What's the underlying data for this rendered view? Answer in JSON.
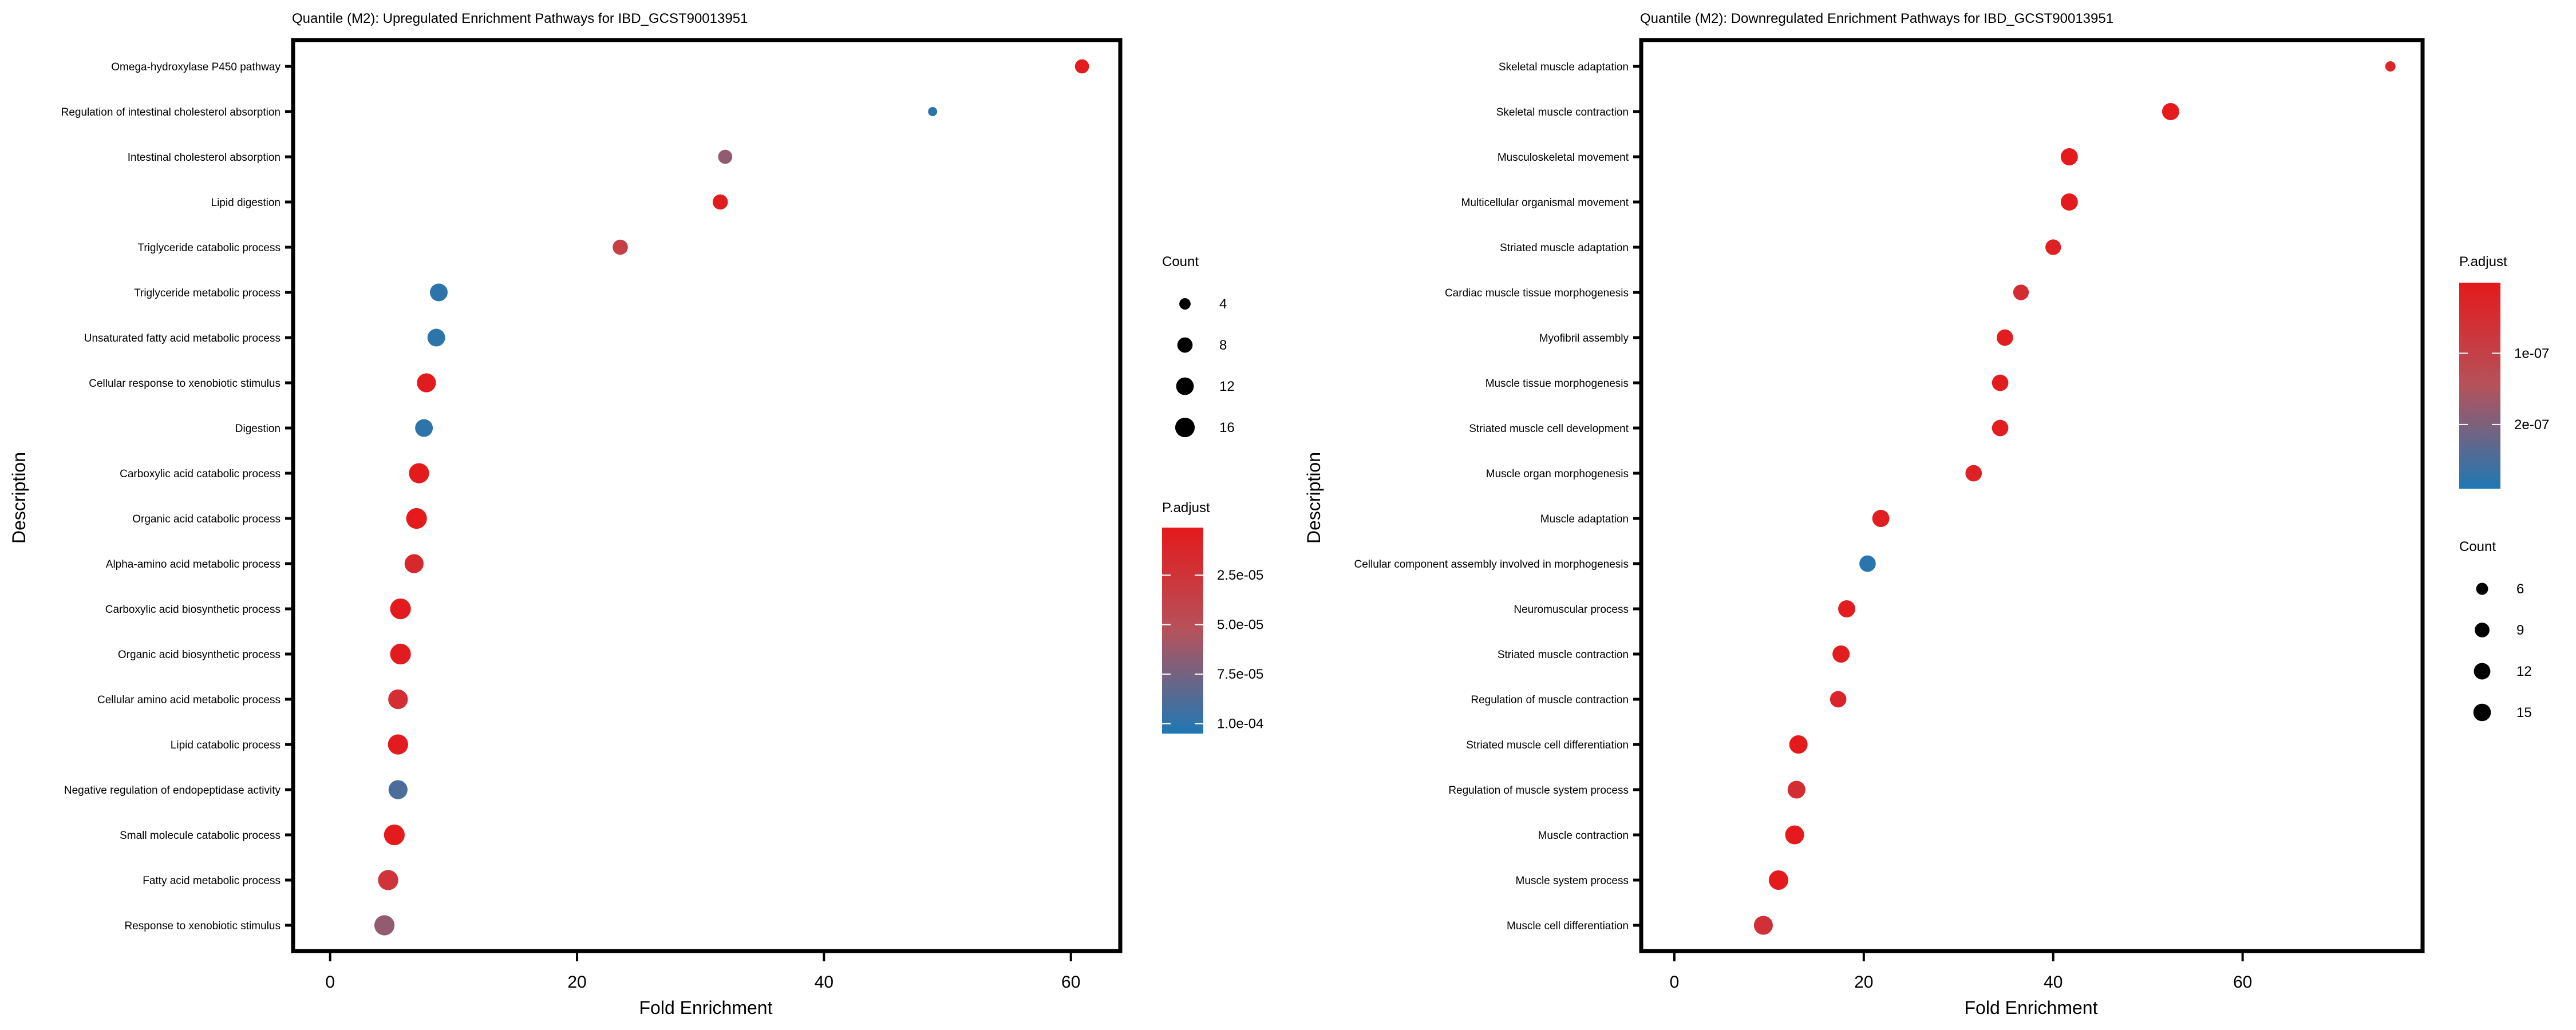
{
  "chart_data": [
    {
      "type": "scatter",
      "title": "Quantile (M2): Upregulated Enrichment Pathways for IBD_GCST90013951",
      "xlabel": "Fold Enrichment",
      "ylabel": "Description",
      "xlim": [
        -3,
        64
      ],
      "xticks": [
        0,
        20,
        40,
        60
      ],
      "grid": false,
      "categories": [
        "Omega-hydroxylase P450 pathway",
        "Regulation of intestinal cholesterol absorption",
        "Intestinal cholesterol absorption",
        "Lipid digestion",
        "Triglyceride catabolic process",
        "Triglyceride metabolic process",
        "Unsaturated fatty acid metabolic process",
        "Cellular response to xenobiotic stimulus",
        "Digestion",
        "Carboxylic acid catabolic process",
        "Organic acid catabolic process",
        "Alpha-amino acid metabolic process",
        "Carboxylic acid biosynthetic process",
        "Organic acid biosynthetic process",
        "Cellular amino acid metabolic process",
        "Lipid catabolic process",
        "Negative regulation of endopeptidase activity",
        "Small molecule catabolic process",
        "Fatty acid metabolic process",
        "Response to xenobiotic stimulus"
      ],
      "fold_enrichment": [
        60.9,
        48.8,
        32.0,
        31.6,
        23.5,
        8.8,
        8.6,
        7.8,
        7.6,
        7.2,
        7.0,
        6.8,
        5.7,
        5.7,
        5.5,
        5.5,
        5.5,
        5.2,
        4.7,
        4.4
      ],
      "count": [
        5,
        3,
        5,
        6,
        6,
        9,
        9,
        11,
        9,
        13,
        14,
        11,
        14,
        14,
        12,
        13,
        11,
        14,
        13,
        13
      ],
      "p_adjust": [
        2e-06,
        0.0001,
        6.5e-05,
        3e-06,
        3.5e-05,
        0.0001,
        0.0001,
        3e-06,
        0.0001,
        2e-06,
        1e-06,
        1.5e-05,
        3e-06,
        3e-06,
        2e-05,
        3e-06,
        9e-05,
        2e-06,
        2.5e-05,
        6.5e-05
      ],
      "legend": {
        "size": {
          "title": "Count",
          "values": [
            4,
            8,
            12,
            16
          ],
          "labels": [
            "4",
            "8",
            "12",
            "16"
          ]
        },
        "color": {
          "title": "P.adjust",
          "range": [
            1e-06,
            0.000105
          ],
          "ticks": [
            2.5e-05,
            5e-05,
            7.5e-05,
            0.0001
          ],
          "labels": [
            "2.5e-05",
            "5.0e-05",
            "7.5e-05",
            "1.0e-04"
          ],
          "low_color": "#e41a1c",
          "high_color": "#1f78b4"
        },
        "placement": "right",
        "order": [
          "size",
          "color"
        ]
      }
    },
    {
      "type": "scatter",
      "title": "Quantile (M2): Downregulated Enrichment Pathways for IBD_GCST90013951",
      "xlabel": "Fold Enrichment",
      "ylabel": "Description",
      "xlim": [
        -3.5,
        79
      ],
      "xticks": [
        0,
        20,
        40,
        60
      ],
      "grid": false,
      "categories": [
        "Skeletal muscle adaptation",
        "Skeletal muscle contraction",
        "Musculoskeletal movement",
        "Multicellular organismal movement",
        "Striated muscle adaptation",
        "Cardiac muscle tissue morphogenesis",
        "Myofibril assembly",
        "Muscle tissue morphogenesis",
        "Striated muscle cell development",
        "Muscle organ morphogenesis",
        "Muscle adaptation",
        "Cellular component assembly involved in morphogenesis",
        "Neuromuscular process",
        "Striated muscle contraction",
        "Regulation of muscle contraction",
        "Striated muscle cell differentiation",
        "Regulation of muscle system process",
        "Muscle contraction",
        "Muscle system process",
        "Muscle cell differentiation"
      ],
      "fold_enrichment": [
        75.6,
        52.4,
        41.7,
        41.7,
        40.0,
        36.6,
        34.9,
        34.4,
        34.4,
        31.6,
        21.8,
        20.4,
        18.2,
        17.6,
        17.3,
        13.1,
        12.9,
        12.7,
        11.0,
        9.4
      ],
      "count": [
        5,
        10,
        10,
        10,
        8,
        8,
        9,
        9,
        9,
        9,
        10,
        9,
        10,
        10,
        9,
        12,
        11,
        13,
        14,
        13
      ],
      "p_adjust": [
        3e-08,
        1e-09,
        1e-09,
        1e-09,
        2e-08,
        5e-08,
        1e-08,
        1e-08,
        1e-08,
        2e-08,
        1e-08,
        2.8e-07,
        1e-08,
        1e-08,
        3e-08,
        1e-09,
        5e-08,
        1e-09,
        1e-09,
        6e-08
      ],
      "legend": {
        "color": {
          "title": "P.adjust",
          "range": [
            1e-09,
            2.9e-07
          ],
          "ticks": [
            1e-07,
            2e-07
          ],
          "labels": [
            "1e-07",
            "2e-07"
          ],
          "low_color": "#e41a1c",
          "high_color": "#1f78b4"
        },
        "size": {
          "title": "Count",
          "values": [
            6,
            9,
            12,
            15
          ],
          "labels": [
            "6",
            "9",
            "12",
            "15"
          ]
        },
        "placement": "right",
        "order": [
          "color",
          "size"
        ]
      }
    }
  ]
}
